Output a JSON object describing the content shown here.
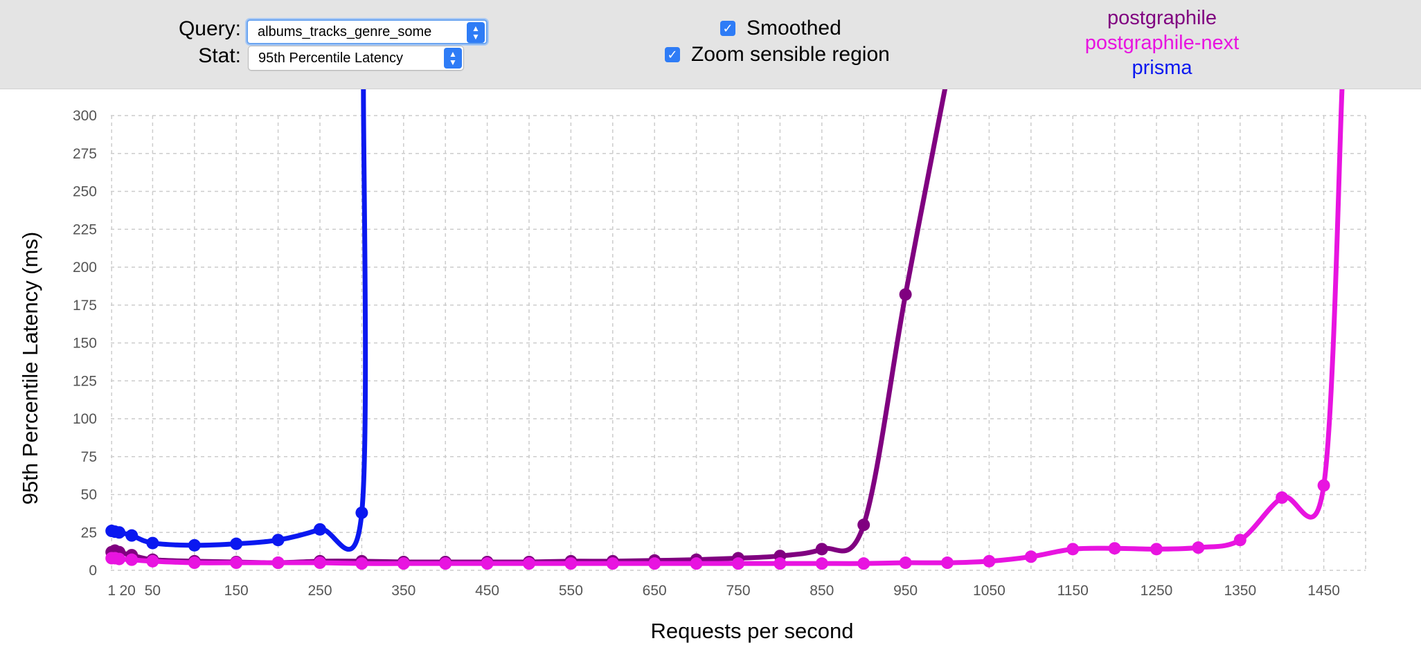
{
  "controls": {
    "query_label": "Query:",
    "query_value": "albums_tracks_genre_some",
    "stat_label": "Stat:",
    "stat_value": "95th Percentile Latency",
    "smoothed_label": "Smoothed",
    "smoothed_checked": true,
    "zoom_label": "Zoom sensible region",
    "zoom_checked": true
  },
  "colors": {
    "postgraphile": "#800080",
    "postgraphile_next": "#e814e0",
    "prisma": "#0a18f0",
    "grid": "#cccccc"
  },
  "chart_data": {
    "type": "line",
    "xlabel": "Requests per second",
    "ylabel": "95th Percentile Latency (ms)",
    "xlim": [
      0,
      1500
    ],
    "ylim": [
      0,
      300
    ],
    "xticks": [
      1,
      20,
      50,
      150,
      250,
      350,
      450,
      550,
      650,
      750,
      850,
      950,
      1050,
      1150,
      1250,
      1350,
      1450
    ],
    "xtick_labels": [
      "1",
      "20",
      "50",
      "150",
      "250",
      "350",
      "450",
      "550",
      "650",
      "750",
      "850",
      "950",
      "1050",
      "1150",
      "1250",
      "1350",
      "1450"
    ],
    "xgrid": [
      1,
      50,
      100,
      150,
      200,
      250,
      300,
      350,
      400,
      450,
      500,
      550,
      600,
      650,
      700,
      750,
      800,
      850,
      900,
      950,
      1000,
      1050,
      1100,
      1150,
      1200,
      1250,
      1300,
      1350,
      1400,
      1450,
      1500
    ],
    "yticks": [
      0,
      25,
      50,
      75,
      100,
      125,
      150,
      175,
      200,
      225,
      250,
      275,
      300
    ],
    "grid": true,
    "legend": "top-right",
    "series": [
      {
        "name": "postgraphile",
        "color_key": "postgraphile",
        "points": [
          [
            1,
            12
          ],
          [
            5,
            13
          ],
          [
            10,
            12
          ],
          [
            25,
            10
          ],
          [
            50,
            7
          ],
          [
            100,
            6
          ],
          [
            150,
            5.5
          ],
          [
            200,
            5
          ],
          [
            250,
            6
          ],
          [
            300,
            6
          ],
          [
            350,
            5.5
          ],
          [
            400,
            5.5
          ],
          [
            450,
            5.5
          ],
          [
            500,
            5.5
          ],
          [
            550,
            6
          ],
          [
            600,
            6
          ],
          [
            650,
            6.5
          ],
          [
            700,
            7
          ],
          [
            750,
            8
          ],
          [
            800,
            9.5
          ],
          [
            850,
            14
          ],
          [
            900,
            30
          ],
          [
            950,
            182
          ]
        ],
        "exit_at": [
          998,
          320
        ]
      },
      {
        "name": "postgraphile-next",
        "color_key": "postgraphile_next",
        "points": [
          [
            1,
            8
          ],
          [
            5,
            8
          ],
          [
            10,
            7.5
          ],
          [
            25,
            7
          ],
          [
            50,
            6
          ],
          [
            100,
            5
          ],
          [
            150,
            5
          ],
          [
            200,
            5
          ],
          [
            250,
            5
          ],
          [
            300,
            4.5
          ],
          [
            350,
            4.5
          ],
          [
            400,
            4.5
          ],
          [
            450,
            4.5
          ],
          [
            500,
            4.5
          ],
          [
            550,
            4.5
          ],
          [
            600,
            4.5
          ],
          [
            650,
            4.5
          ],
          [
            700,
            4.5
          ],
          [
            750,
            4.5
          ],
          [
            800,
            4.5
          ],
          [
            850,
            4.5
          ],
          [
            900,
            4.5
          ],
          [
            950,
            5
          ],
          [
            1000,
            5
          ],
          [
            1050,
            6
          ],
          [
            1100,
            9
          ],
          [
            1150,
            14
          ],
          [
            1200,
            14.5
          ],
          [
            1250,
            14
          ],
          [
            1300,
            15
          ],
          [
            1350,
            20
          ],
          [
            1400,
            48
          ],
          [
            1450,
            56
          ]
        ],
        "exit_at": [
          1472,
          320
        ]
      },
      {
        "name": "prisma",
        "color_key": "prisma",
        "points": [
          [
            1,
            26
          ],
          [
            5,
            25.5
          ],
          [
            10,
            25
          ],
          [
            25,
            23
          ],
          [
            50,
            18
          ],
          [
            100,
            16.5
          ],
          [
            150,
            17.5
          ],
          [
            200,
            20
          ],
          [
            250,
            27
          ],
          [
            300,
            38
          ]
        ],
        "exit_at": [
          302,
          320
        ]
      }
    ]
  }
}
